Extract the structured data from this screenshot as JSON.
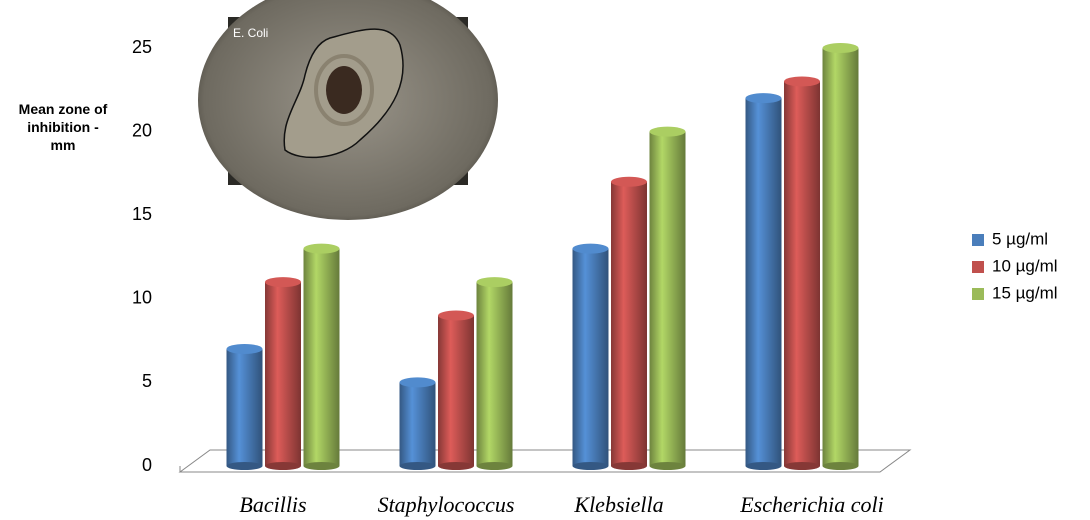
{
  "chart_data": {
    "type": "bar3d",
    "y_label": "Mean zone of inhibition - mm",
    "annotation": "E. Coli",
    "categories": [
      "Bacillis",
      "Staphylococcus",
      "Klebsiella",
      "Escherichia coli"
    ],
    "series": [
      {
        "name": "5 µg/ml",
        "color": "#4a7ebb",
        "values": [
          7,
          5,
          13,
          22
        ]
      },
      {
        "name": "10 µg/ml",
        "color": "#c0504d",
        "values": [
          11,
          9,
          17,
          23
        ]
      },
      {
        "name": "15 µg/ml",
        "color": "#9bbb59",
        "values": [
          13,
          11,
          20,
          25
        ]
      }
    ],
    "ylim": [
      0,
      25
    ],
    "yticks": [
      0,
      5,
      10,
      15,
      20,
      25
    ],
    "grid": false,
    "legend": "right"
  }
}
